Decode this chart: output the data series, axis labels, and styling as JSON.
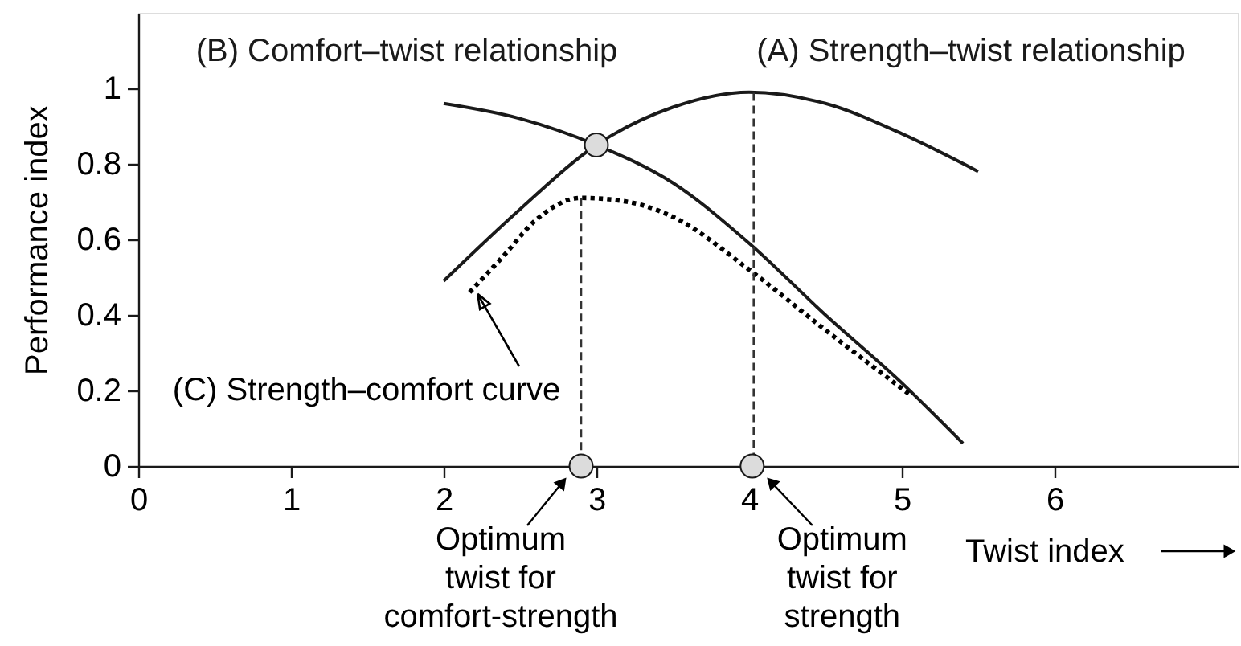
{
  "chart_data": {
    "type": "line",
    "xlabel": "Twist index",
    "ylabel": "Performance index",
    "xlim": [
      0,
      7.2
    ],
    "ylim": [
      0,
      1.2
    ],
    "xticks": [
      0,
      1,
      2,
      3,
      4,
      5,
      6
    ],
    "yticks": [
      0,
      0.2,
      0.4,
      0.6,
      0.8,
      1
    ],
    "series": [
      {
        "name": "(A) Strength–twist relationship",
        "color": "#1a1a1a",
        "x": [
          2.0,
          2.5,
          3.0,
          3.5,
          4.0,
          4.5,
          5.0,
          5.5
        ],
        "values": [
          0.49,
          0.68,
          0.85,
          0.95,
          0.99,
          0.96,
          0.88,
          0.78
        ]
      },
      {
        "name": "(B) Comfort–twist relationship",
        "color": "#1a1a1a",
        "x": [
          2.0,
          2.5,
          3.0,
          3.5,
          4.0,
          4.5,
          5.0,
          5.4
        ],
        "values": [
          0.96,
          0.92,
          0.85,
          0.75,
          0.59,
          0.4,
          0.22,
          0.06
        ]
      },
      {
        "name": "(C) Strength–comfort curve",
        "color": "#000000",
        "line_style": "dotted",
        "x": [
          2.17,
          2.4,
          2.6,
          2.9,
          3.2,
          3.5,
          4.0,
          4.5,
          5.05
        ],
        "values": [
          0.46,
          0.56,
          0.65,
          0.71,
          0.7,
          0.66,
          0.52,
          0.36,
          0.19
        ]
      },
      {
        "color": "#333333",
        "line_style": "dashed",
        "x": [
          2.9,
          2.9
        ],
        "values": [
          0,
          0.71
        ]
      },
      {
        "type": "scatter",
        "marker": "circle",
        "color": "#dcdcdc",
        "x": [
          3.0,
          2.9,
          4.02
        ],
        "values": [
          0.85,
          0,
          0
        ]
      }
    ],
    "ref_lines": [
      {
        "axis": "x",
        "value": 4.03,
        "color": "#333333",
        "line_style": "dashed"
      }
    ],
    "annotations": [
      {
        "text": "Optimum twist for comfort-strength",
        "x": 2.9,
        "y": 0
      },
      {
        "text": "Optimum twist for strength",
        "x": 4.02,
        "y": 0
      }
    ]
  }
}
